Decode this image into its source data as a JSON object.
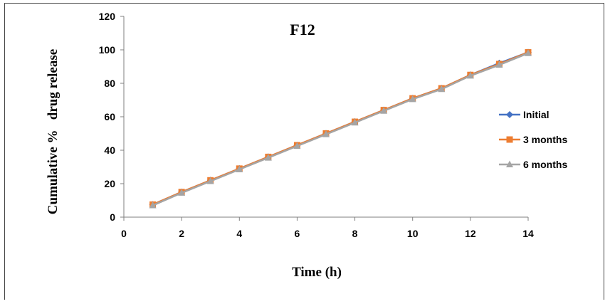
{
  "chart_data": {
    "type": "line",
    "title": "F12",
    "xlabel": "Time (h)",
    "ylabel": "Cumulative %   drug release",
    "xlim": [
      0,
      14
    ],
    "ylim": [
      0,
      120
    ],
    "xticks": [
      0,
      2,
      4,
      6,
      8,
      10,
      12,
      14
    ],
    "yticks": [
      0,
      20,
      40,
      60,
      80,
      100,
      120
    ],
    "grid": false,
    "legend_position": "right",
    "x": [
      1,
      2,
      3,
      4,
      5,
      6,
      7,
      8,
      9,
      10,
      11,
      12,
      13,
      14
    ],
    "series": [
      {
        "name": "Initial",
        "color": "#4472C4",
        "marker": "diamond",
        "values": [
          7.5,
          15,
          22,
          29,
          36,
          43,
          50,
          57,
          64,
          71,
          77,
          85,
          92,
          98.5
        ]
      },
      {
        "name": "3 months",
        "color": "#ED7D31",
        "marker": "square",
        "values": [
          7.5,
          15,
          22,
          29,
          36,
          43,
          50,
          57,
          64,
          71,
          77,
          85,
          91.5,
          98.5
        ]
      },
      {
        "name": "6 months",
        "color": "#A5A5A5",
        "marker": "triangle",
        "values": [
          7,
          14.5,
          21.5,
          28.5,
          35.5,
          42.5,
          49.5,
          56.5,
          63.5,
          70.5,
          76.5,
          84.5,
          91,
          98
        ]
      }
    ]
  }
}
